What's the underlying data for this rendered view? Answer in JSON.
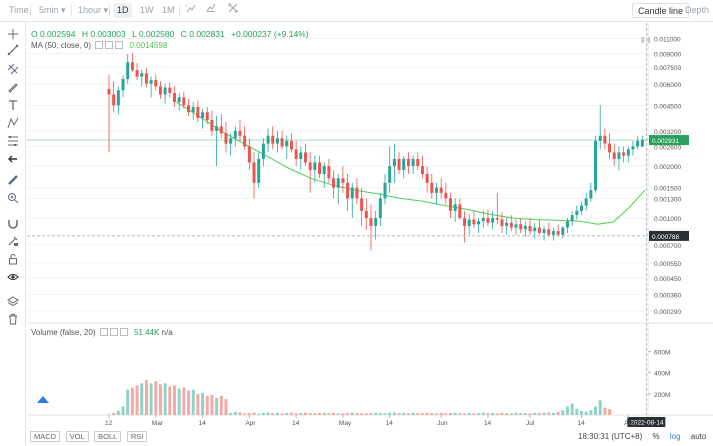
{
  "toolbar": {
    "time_label": "Time",
    "interval_select": "5min",
    "hour_select": "1hour",
    "ranges": [
      "1D",
      "1W",
      "1M"
    ],
    "active_range": "1D",
    "candle_line_label": "Candle line",
    "depth_label": "Depth"
  },
  "legend": {
    "open": "O 0.002594",
    "high": "H 0.003003",
    "low": "L 0.002580",
    "close": "C 0.002831",
    "change": "+0.000237 (+9.14%)",
    "ma_label": "MA (50, close, 0)",
    "ma_value": "0.0014598",
    "volume_label": "Volume (false, 20)",
    "volume_value": "51.44K",
    "volume_na": "n/a"
  },
  "price_axis": {
    "ticks": [
      "0.011000",
      "0.009000",
      "0.007500",
      "0.006000",
      "0.004500",
      "0.003200",
      "0.002600",
      "0.002000",
      "0.001500",
      "0.001300",
      "0.001000",
      "0.000700",
      "0.000550",
      "0.000450",
      "0.000360",
      "0.000290"
    ],
    "last_price": "0.002831",
    "cursor_price": "0.000788"
  },
  "volume_axis": {
    "ticks": [
      "600M",
      "400M",
      "200M"
    ]
  },
  "time_axis": {
    "ticks": [
      "12",
      "Mar",
      "14",
      "Apr",
      "14",
      "May",
      "14",
      "Jun",
      "14",
      "Jul",
      "14",
      "Aug"
    ],
    "cursor_date": "2022-08-14"
  },
  "indicator_tabs": [
    "MACD",
    "VOL",
    "BOLL",
    "RSI"
  ],
  "footer": {
    "clock": "18:30:31 (UTC+8)",
    "percent": "%",
    "log": "log",
    "auto": "auto"
  },
  "colors": {
    "up": "#26a69a",
    "down": "#ef5350",
    "ma": "#4cd04c",
    "price_line": "#26a05a",
    "crosshair": "#9aa3ad",
    "grid": "#f3f3f3"
  },
  "icons": [
    "cursor-icon",
    "trend-line-icon",
    "parallel-channel-icon",
    "brush-icon",
    "text-icon",
    "pattern-icon",
    "fib-icon",
    "back-arrow-icon",
    "ruler-icon",
    "zoom-in-icon",
    "magnet-icon",
    "lock-draw-icon",
    "lock-icon",
    "eye-icon",
    "layers-icon",
    "trash-icon"
  ],
  "chart_data": {
    "type": "candlestick",
    "price_scale": "log",
    "x_ticks": [
      "12",
      "Mar",
      "14",
      "Apr",
      "14",
      "May",
      "14",
      "Jun",
      "14",
      "Jul",
      "14",
      "Aug"
    ],
    "last_close": 0.002831,
    "series": [
      {
        "o": 0.0056,
        "h": 0.0068,
        "l": 0.0024,
        "c": 0.0052
      },
      {
        "o": 0.0052,
        "h": 0.0062,
        "l": 0.0041,
        "c": 0.0045
      },
      {
        "o": 0.0045,
        "h": 0.0058,
        "l": 0.004,
        "c": 0.0055
      },
      {
        "o": 0.0055,
        "h": 0.0067,
        "l": 0.005,
        "c": 0.0064
      },
      {
        "o": 0.0064,
        "h": 0.0089,
        "l": 0.006,
        "c": 0.008
      },
      {
        "o": 0.008,
        "h": 0.009,
        "l": 0.007,
        "c": 0.0072
      },
      {
        "o": 0.0072,
        "h": 0.0079,
        "l": 0.0063,
        "c": 0.0066
      },
      {
        "o": 0.0066,
        "h": 0.0072,
        "l": 0.0058,
        "c": 0.0069
      },
      {
        "o": 0.0069,
        "h": 0.0074,
        "l": 0.0057,
        "c": 0.006
      },
      {
        "o": 0.006,
        "h": 0.0066,
        "l": 0.005,
        "c": 0.0063
      },
      {
        "o": 0.0063,
        "h": 0.0068,
        "l": 0.0055,
        "c": 0.0058
      },
      {
        "o": 0.0058,
        "h": 0.0062,
        "l": 0.0049,
        "c": 0.0052
      },
      {
        "o": 0.0052,
        "h": 0.006,
        "l": 0.0046,
        "c": 0.0057
      },
      {
        "o": 0.0057,
        "h": 0.0061,
        "l": 0.005,
        "c": 0.0053
      },
      {
        "o": 0.0053,
        "h": 0.0058,
        "l": 0.0044,
        "c": 0.0047
      },
      {
        "o": 0.0047,
        "h": 0.0053,
        "l": 0.0042,
        "c": 0.005
      },
      {
        "o": 0.005,
        "h": 0.0054,
        "l": 0.0043,
        "c": 0.0045
      },
      {
        "o": 0.0045,
        "h": 0.0049,
        "l": 0.0039,
        "c": 0.0041
      },
      {
        "o": 0.0041,
        "h": 0.0047,
        "l": 0.0037,
        "c": 0.0044
      },
      {
        "o": 0.0044,
        "h": 0.0048,
        "l": 0.0036,
        "c": 0.0038
      },
      {
        "o": 0.0038,
        "h": 0.0043,
        "l": 0.0033,
        "c": 0.0041
      },
      {
        "o": 0.0041,
        "h": 0.0044,
        "l": 0.0035,
        "c": 0.0037
      },
      {
        "o": 0.0037,
        "h": 0.0042,
        "l": 0.003,
        "c": 0.0032
      },
      {
        "o": 0.0032,
        "h": 0.0039,
        "l": 0.002,
        "c": 0.0034
      },
      {
        "o": 0.0034,
        "h": 0.004,
        "l": 0.0029,
        "c": 0.0031
      },
      {
        "o": 0.0031,
        "h": 0.0036,
        "l": 0.0024,
        "c": 0.0027
      },
      {
        "o": 0.0027,
        "h": 0.0031,
        "l": 0.0023,
        "c": 0.0029
      },
      {
        "o": 0.0029,
        "h": 0.0034,
        "l": 0.0026,
        "c": 0.0032
      },
      {
        "o": 0.0032,
        "h": 0.0037,
        "l": 0.0028,
        "c": 0.003
      },
      {
        "o": 0.003,
        "h": 0.0034,
        "l": 0.0025,
        "c": 0.0026
      },
      {
        "o": 0.0026,
        "h": 0.0029,
        "l": 0.0019,
        "c": 0.0021
      },
      {
        "o": 0.0021,
        "h": 0.0024,
        "l": 0.0013,
        "c": 0.0016
      },
      {
        "o": 0.0016,
        "h": 0.0024,
        "l": 0.0015,
        "c": 0.0022
      },
      {
        "o": 0.0022,
        "h": 0.0029,
        "l": 0.002,
        "c": 0.0027
      },
      {
        "o": 0.0027,
        "h": 0.0033,
        "l": 0.0024,
        "c": 0.003
      },
      {
        "o": 0.003,
        "h": 0.0034,
        "l": 0.0025,
        "c": 0.0027
      },
      {
        "o": 0.0027,
        "h": 0.0032,
        "l": 0.0024,
        "c": 0.0029
      },
      {
        "o": 0.0029,
        "h": 0.0032,
        "l": 0.0025,
        "c": 0.0026
      },
      {
        "o": 0.0026,
        "h": 0.003,
        "l": 0.0022,
        "c": 0.0028
      },
      {
        "o": 0.0028,
        "h": 0.0031,
        "l": 0.0024,
        "c": 0.0025
      },
      {
        "o": 0.0025,
        "h": 0.0028,
        "l": 0.002,
        "c": 0.0022
      },
      {
        "o": 0.0022,
        "h": 0.0026,
        "l": 0.0019,
        "c": 0.0024
      },
      {
        "o": 0.0024,
        "h": 0.0027,
        "l": 0.002,
        "c": 0.0021
      },
      {
        "o": 0.0021,
        "h": 0.0024,
        "l": 0.0014,
        "c": 0.0019
      },
      {
        "o": 0.0019,
        "h": 0.0023,
        "l": 0.0016,
        "c": 0.0021
      },
      {
        "o": 0.0021,
        "h": 0.0023,
        "l": 0.0017,
        "c": 0.0018
      },
      {
        "o": 0.0018,
        "h": 0.0021,
        "l": 0.0015,
        "c": 0.002
      },
      {
        "o": 0.002,
        "h": 0.0022,
        "l": 0.0016,
        "c": 0.0017
      },
      {
        "o": 0.0017,
        "h": 0.0019,
        "l": 0.0013,
        "c": 0.0015
      },
      {
        "o": 0.0015,
        "h": 0.0018,
        "l": 0.0012,
        "c": 0.0017
      },
      {
        "o": 0.0017,
        "h": 0.002,
        "l": 0.0014,
        "c": 0.0016
      },
      {
        "o": 0.0016,
        "h": 0.0018,
        "l": 0.0011,
        "c": 0.0013
      },
      {
        "o": 0.0013,
        "h": 0.0016,
        "l": 0.001,
        "c": 0.0015
      },
      {
        "o": 0.0015,
        "h": 0.0017,
        "l": 0.0012,
        "c": 0.0013
      },
      {
        "o": 0.0013,
        "h": 0.0015,
        "l": 0.0009,
        "c": 0.0011
      },
      {
        "o": 0.0011,
        "h": 0.0013,
        "l": 0.00085,
        "c": 0.001
      },
      {
        "o": 0.001,
        "h": 0.0012,
        "l": 0.00065,
        "c": 0.0009
      },
      {
        "o": 0.0009,
        "h": 0.0011,
        "l": 0.00075,
        "c": 0.001
      },
      {
        "o": 0.001,
        "h": 0.0014,
        "l": 0.0009,
        "c": 0.0013
      },
      {
        "o": 0.0013,
        "h": 0.0018,
        "l": 0.0012,
        "c": 0.0016
      },
      {
        "o": 0.0016,
        "h": 0.0026,
        "l": 0.0014,
        "c": 0.002
      },
      {
        "o": 0.002,
        "h": 0.0027,
        "l": 0.0016,
        "c": 0.0022
      },
      {
        "o": 0.0022,
        "h": 0.0024,
        "l": 0.0018,
        "c": 0.0019
      },
      {
        "o": 0.0019,
        "h": 0.0023,
        "l": 0.0017,
        "c": 0.0022
      },
      {
        "o": 0.0022,
        "h": 0.0024,
        "l": 0.0018,
        "c": 0.002
      },
      {
        "o": 0.002,
        "h": 0.0023,
        "l": 0.0018,
        "c": 0.0022
      },
      {
        "o": 0.0022,
        "h": 0.0024,
        "l": 0.0019,
        "c": 0.002
      },
      {
        "o": 0.002,
        "h": 0.0023,
        "l": 0.0017,
        "c": 0.0018
      },
      {
        "o": 0.0018,
        "h": 0.002,
        "l": 0.0014,
        "c": 0.0016
      },
      {
        "o": 0.0016,
        "h": 0.0018,
        "l": 0.0013,
        "c": 0.0014
      },
      {
        "o": 0.0014,
        "h": 0.0016,
        "l": 0.0012,
        "c": 0.0015
      },
      {
        "o": 0.0015,
        "h": 0.0017,
        "l": 0.0013,
        "c": 0.0014
      },
      {
        "o": 0.0014,
        "h": 0.0016,
        "l": 0.0012,
        "c": 0.0013
      },
      {
        "o": 0.0013,
        "h": 0.0014,
        "l": 0.001,
        "c": 0.0011
      },
      {
        "o": 0.0011,
        "h": 0.0013,
        "l": 0.00095,
        "c": 0.0012
      },
      {
        "o": 0.0012,
        "h": 0.0013,
        "l": 0.00098,
        "c": 0.001
      },
      {
        "o": 0.001,
        "h": 0.0011,
        "l": 0.00072,
        "c": 0.0009
      },
      {
        "o": 0.0009,
        "h": 0.00105,
        "l": 0.0008,
        "c": 0.00098
      },
      {
        "o": 0.00098,
        "h": 0.0011,
        "l": 0.00088,
        "c": 0.00092
      },
      {
        "o": 0.00092,
        "h": 0.001,
        "l": 0.00082,
        "c": 0.00096
      },
      {
        "o": 0.00096,
        "h": 0.0011,
        "l": 0.00088,
        "c": 0.001
      },
      {
        "o": 0.001,
        "h": 0.00112,
        "l": 0.0009,
        "c": 0.00094
      },
      {
        "o": 0.00094,
        "h": 0.0011,
        "l": 0.00086,
        "c": 0.001
      },
      {
        "o": 0.001,
        "h": 0.0014,
        "l": 0.00092,
        "c": 0.00098
      },
      {
        "o": 0.00098,
        "h": 0.00108,
        "l": 0.00082,
        "c": 0.0009
      },
      {
        "o": 0.0009,
        "h": 0.001,
        "l": 0.0008,
        "c": 0.00094
      },
      {
        "o": 0.00094,
        "h": 0.00104,
        "l": 0.00084,
        "c": 0.00088
      },
      {
        "o": 0.00088,
        "h": 0.00098,
        "l": 0.0008,
        "c": 0.00092
      },
      {
        "o": 0.00092,
        "h": 0.001,
        "l": 0.00082,
        "c": 0.00086
      },
      {
        "o": 0.00086,
        "h": 0.00096,
        "l": 0.00078,
        "c": 0.0009
      },
      {
        "o": 0.0009,
        "h": 0.001,
        "l": 0.0008,
        "c": 0.00084
      },
      {
        "o": 0.00084,
        "h": 0.00094,
        "l": 0.00076,
        "c": 0.00088
      },
      {
        "o": 0.00088,
        "h": 0.00098,
        "l": 0.0008,
        "c": 0.00082
      },
      {
        "o": 0.00082,
        "h": 0.0009,
        "l": 0.00074,
        "c": 0.00086
      },
      {
        "o": 0.00086,
        "h": 0.00094,
        "l": 0.00078,
        "c": 0.0008
      },
      {
        "o": 0.0008,
        "h": 0.00088,
        "l": 0.00074,
        "c": 0.00084
      },
      {
        "o": 0.00084,
        "h": 0.00092,
        "l": 0.00078,
        "c": 0.0008
      },
      {
        "o": 0.0008,
        "h": 0.0009,
        "l": 0.00076,
        "c": 0.00088
      },
      {
        "o": 0.00088,
        "h": 0.001,
        "l": 0.00082,
        "c": 0.00096
      },
      {
        "o": 0.00096,
        "h": 0.0011,
        "l": 0.0009,
        "c": 0.00104
      },
      {
        "o": 0.00104,
        "h": 0.00118,
        "l": 0.00098,
        "c": 0.0011
      },
      {
        "o": 0.0011,
        "h": 0.00125,
        "l": 0.00104,
        "c": 0.00118
      },
      {
        "o": 0.00118,
        "h": 0.0014,
        "l": 0.0011,
        "c": 0.0013
      },
      {
        "o": 0.0013,
        "h": 0.0016,
        "l": 0.00124,
        "c": 0.00145
      },
      {
        "o": 0.00145,
        "h": 0.003,
        "l": 0.0014,
        "c": 0.0028
      },
      {
        "o": 0.0028,
        "h": 0.0045,
        "l": 0.0025,
        "c": 0.003
      },
      {
        "o": 0.003,
        "h": 0.0033,
        "l": 0.0025,
        "c": 0.0027
      },
      {
        "o": 0.0027,
        "h": 0.0031,
        "l": 0.0022,
        "c": 0.0024
      },
      {
        "o": 0.0024,
        "h": 0.0027,
        "l": 0.002,
        "c": 0.0022
      },
      {
        "o": 0.0022,
        "h": 0.0026,
        "l": 0.0019,
        "c": 0.0024
      },
      {
        "o": 0.0024,
        "h": 0.0026,
        "l": 0.0021,
        "c": 0.0023
      },
      {
        "o": 0.0023,
        "h": 0.0026,
        "l": 0.0021,
        "c": 0.0025
      },
      {
        "o": 0.0025,
        "h": 0.0028,
        "l": 0.0023,
        "c": 0.0026
      },
      {
        "o": 0.0026,
        "h": 0.003,
        "l": 0.0025,
        "c": 0.0028
      },
      {
        "o": 0.002594,
        "h": 0.003003,
        "l": 0.00258,
        "c": 0.002831
      }
    ],
    "ma_50": [
      [
        30,
        0.0047
      ],
      [
        40,
        0.0039
      ],
      [
        50,
        0.0032
      ],
      [
        60,
        0.0027
      ],
      [
        70,
        0.0023
      ],
      [
        80,
        0.00195
      ],
      [
        90,
        0.0017
      ],
      [
        100,
        0.00155
      ],
      [
        110,
        0.00145
      ],
      [
        120,
        0.00138
      ],
      [
        130,
        0.0013
      ],
      [
        140,
        0.00125
      ],
      [
        150,
        0.00118
      ],
      [
        160,
        0.00112
      ],
      [
        170,
        0.00105
      ],
      [
        180,
        0.001
      ],
      [
        190,
        0.00098
      ],
      [
        200,
        0.00097
      ],
      [
        210,
        0.00096
      ],
      [
        218,
        0.00092
      ],
      [
        225,
        0.00095
      ],
      [
        232,
        0.00115
      ],
      [
        239,
        0.00145
      ]
    ],
    "volume_M": [
      5,
      20,
      40,
      80,
      240,
      260,
      280,
      300,
      330,
      300,
      320,
      290,
      300,
      270,
      280,
      250,
      260,
      230,
      240,
      200,
      210,
      180,
      190,
      160,
      180,
      150,
      20,
      30,
      25,
      15,
      18,
      22,
      12,
      20,
      25,
      18,
      22,
      15,
      20,
      24,
      16,
      18,
      22,
      20,
      17,
      19,
      21,
      18,
      20,
      16,
      14,
      18,
      22,
      20,
      17,
      15,
      19,
      21,
      18,
      16,
      22,
      25,
      18,
      20,
      17,
      23,
      19,
      16,
      21,
      18,
      15,
      20,
      17,
      19,
      22,
      18,
      14,
      20,
      16,
      18,
      21,
      17,
      19,
      15,
      20,
      18,
      16,
      22,
      19,
      17,
      15,
      20,
      18,
      22,
      24,
      20,
      30,
      45,
      80,
      110,
      60,
      40,
      30,
      45,
      80,
      140,
      70,
      55
    ],
    "volume_ylim": [
      0,
      700
    ]
  }
}
